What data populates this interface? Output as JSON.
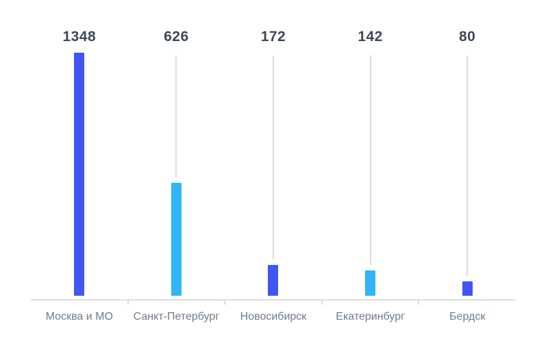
{
  "chart_data": {
    "type": "bar",
    "categories": [
      "Москва и МО",
      "Санкт-Петербург",
      "Новосибирск",
      "Екатеринбург",
      "Бердск"
    ],
    "values": [
      1348,
      626,
      172,
      142,
      80
    ],
    "title": "",
    "xlabel": "",
    "ylabel": "",
    "ylim": [
      0,
      1348
    ],
    "grid": false,
    "legend": false,
    "value_labels_shown": true,
    "bar_colors": [
      "#4155F2",
      "#31B5F8",
      "#4155F2",
      "#31B5F8",
      "#4155F2"
    ]
  },
  "colors": {
    "background": "#FFFFFF",
    "bar_primary": "#4155F2",
    "bar_secondary": "#31B5F8",
    "value_text": "#3E4853",
    "category_text": "#6E7B87",
    "guide_line": "#DCDDDE",
    "axis_line": "#DADEE2"
  }
}
